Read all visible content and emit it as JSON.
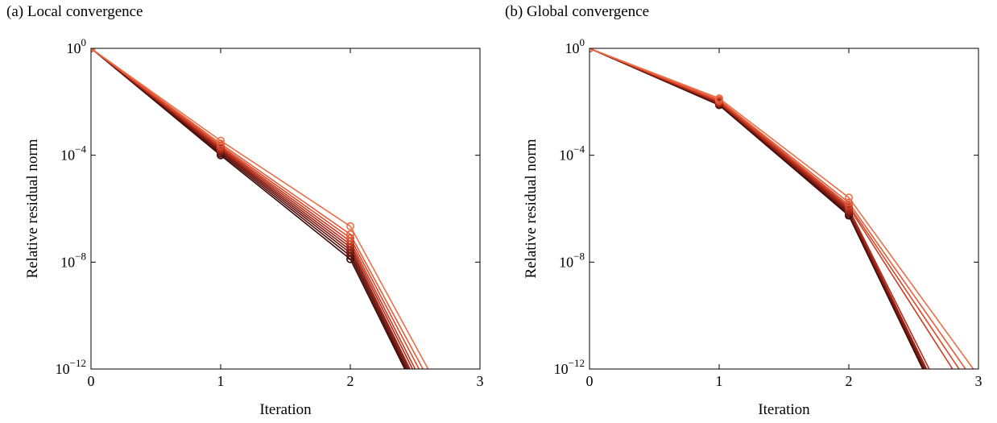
{
  "figures": [
    {
      "caption": "(a) Local convergence"
    },
    {
      "caption": "(b) Global convergence"
    }
  ],
  "series_colors": [
    "#3d0a0a",
    "#52100d",
    "#6a1610",
    "#821c13",
    "#9a2417",
    "#b22d1c",
    "#c93a22",
    "#d94a2c",
    "#e55c38",
    "#ed6e47"
  ],
  "chart_data": [
    {
      "type": "line",
      "title": "",
      "xlabel": "Iteration",
      "ylabel": "Relative residual norm",
      "yscale": "log",
      "xlim": [
        0,
        3
      ],
      "ylim": [
        1e-12,
        1
      ],
      "xticks": [
        0,
        1,
        2,
        3
      ],
      "xtick_labels": [
        "0",
        "1",
        "2",
        "3"
      ],
      "yticks": [
        1e-12,
        1e-08,
        0.0001,
        1
      ],
      "ytick_labels": [
        {
          "base": "10",
          "exp": "−12"
        },
        {
          "base": "10",
          "exp": "−8"
        },
        {
          "base": "10",
          "exp": "−4"
        },
        {
          "base": "10",
          "exp": "0"
        }
      ],
      "grid": false,
      "legend": false,
      "markers": "open-circle",
      "series": [
        {
          "x": [
            0,
            1,
            2,
            2.42
          ],
          "y": [
            1,
            0.0001,
            1.3e-08,
            1e-12
          ]
        },
        {
          "x": [
            0,
            1,
            2,
            2.43
          ],
          "y": [
            1,
            0.000115,
            1.7e-08,
            1e-12
          ]
        },
        {
          "x": [
            0,
            1,
            2,
            2.44
          ],
          "y": [
            1,
            0.00013,
            2.2e-08,
            1e-12
          ]
        },
        {
          "x": [
            0,
            1,
            2,
            2.45
          ],
          "y": [
            1,
            0.000145,
            2.8e-08,
            1e-12
          ]
        },
        {
          "x": [
            0,
            1,
            2,
            2.46
          ],
          "y": [
            1,
            0.00016,
            3.6e-08,
            1e-12
          ]
        },
        {
          "x": [
            0,
            1,
            2,
            2.48
          ],
          "y": [
            1,
            0.00018,
            4.6e-08,
            1e-12
          ]
        },
        {
          "x": [
            0,
            1,
            2,
            2.5
          ],
          "y": [
            1,
            0.0002,
            6e-08,
            1e-12
          ]
        },
        {
          "x": [
            0,
            1,
            2,
            2.53
          ],
          "y": [
            1,
            0.00023,
            8e-08,
            1e-12
          ]
        },
        {
          "x": [
            0,
            1,
            2,
            2.56
          ],
          "y": [
            1,
            0.00027,
            1.1e-07,
            1e-12
          ]
        },
        {
          "x": [
            0,
            1,
            2,
            2.6
          ],
          "y": [
            1,
            0.00035,
            2.2e-07,
            1e-12
          ]
        }
      ]
    },
    {
      "type": "line",
      "title": "",
      "xlabel": "Iteration",
      "ylabel": "Relative residual norm",
      "yscale": "log",
      "xlim": [
        0,
        3
      ],
      "ylim": [
        1e-12,
        1
      ],
      "xticks": [
        0,
        1,
        2,
        3
      ],
      "xtick_labels": [
        "0",
        "1",
        "2",
        "3"
      ],
      "yticks": [
        1e-12,
        1e-08,
        0.0001,
        1
      ],
      "ytick_labels": [
        {
          "base": "10",
          "exp": "−12"
        },
        {
          "base": "10",
          "exp": "−8"
        },
        {
          "base": "10",
          "exp": "−4"
        },
        {
          "base": "10",
          "exp": "0"
        }
      ],
      "grid": false,
      "legend": false,
      "markers": "open-circle",
      "series": [
        {
          "x": [
            0,
            1,
            2,
            2.57
          ],
          "y": [
            1,
            0.0075,
            5.5e-07,
            1e-12
          ]
        },
        {
          "x": [
            0,
            1,
            2,
            2.58
          ],
          "y": [
            1,
            0.0079,
            6.2e-07,
            1e-12
          ]
        },
        {
          "x": [
            0,
            1,
            2,
            2.58
          ],
          "y": [
            1,
            0.0083,
            7e-07,
            1e-12
          ]
        },
        {
          "x": [
            0,
            1,
            2,
            2.59
          ],
          "y": [
            1,
            0.0087,
            7.8e-07,
            1e-12
          ]
        },
        {
          "x": [
            0,
            1,
            2,
            2.6
          ],
          "y": [
            1,
            0.0092,
            8.8e-07,
            1e-12
          ]
        },
        {
          "x": [
            0,
            1,
            2,
            2.62
          ],
          "y": [
            1,
            0.0097,
            1e-06,
            1e-12
          ]
        },
        {
          "x": [
            0,
            1,
            2,
            2.8
          ],
          "y": [
            1,
            0.0103,
            1.15e-06,
            1e-12
          ]
        },
        {
          "x": [
            0,
            1,
            2,
            2.85
          ],
          "y": [
            1,
            0.011,
            1.35e-06,
            1e-12
          ]
        },
        {
          "x": [
            0,
            1,
            2,
            2.9
          ],
          "y": [
            1,
            0.0118,
            1.7e-06,
            1e-12
          ]
        },
        {
          "x": [
            0,
            1,
            2,
            2.96
          ],
          "y": [
            1,
            0.0135,
            2.6e-06,
            1e-12
          ]
        }
      ]
    }
  ]
}
